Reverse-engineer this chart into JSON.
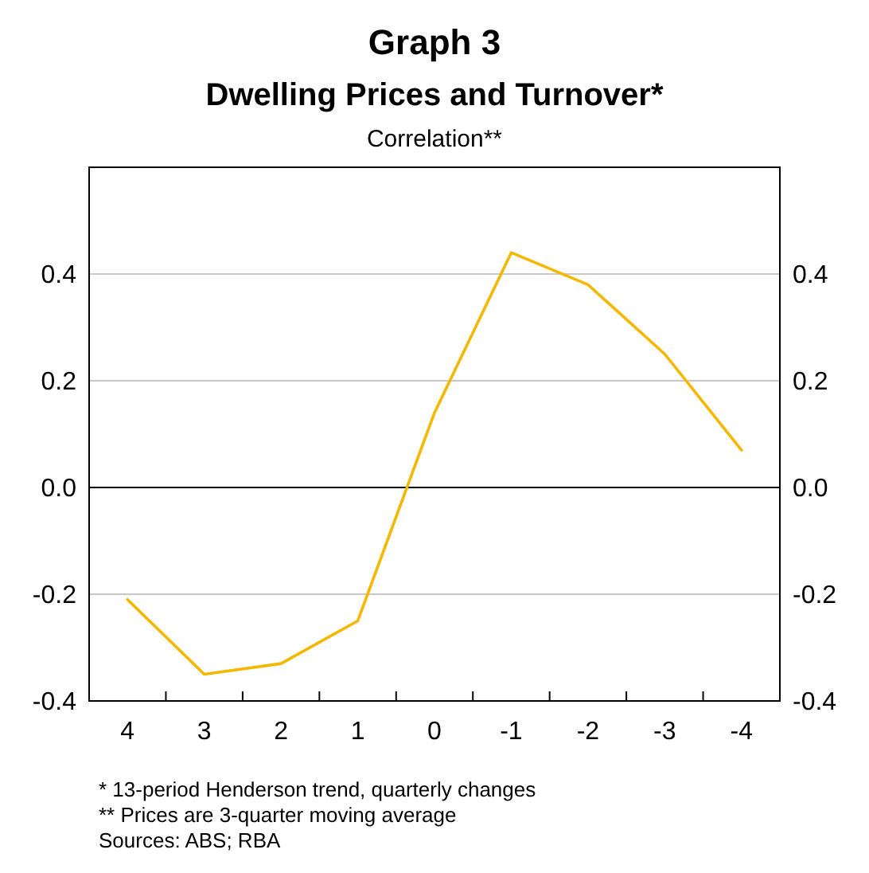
{
  "chart_data": {
    "type": "line",
    "title": "Graph 3",
    "subtitle": "Dwelling Prices and Turnover*",
    "ylabel": "Correlation**",
    "categories": [
      "4",
      "3",
      "2",
      "1",
      "0",
      "-1",
      "-2",
      "-3",
      "-4"
    ],
    "series": [
      {
        "color": "#f5b800",
        "values": [
          -0.21,
          -0.35,
          -0.33,
          -0.25,
          0.14,
          0.44,
          0.38,
          0.25,
          0.07
        ]
      }
    ],
    "ylim": [
      -0.4,
      0.6
    ],
    "yticks": [
      {
        "value": -0.4,
        "label": "-0.4"
      },
      {
        "value": -0.2,
        "label": "-0.2"
      },
      {
        "value": 0,
        "label": "0.0"
      },
      {
        "value": 0.2,
        "label": "0.2"
      },
      {
        "value": 0.4,
        "label": "0.4"
      }
    ],
    "y2lim": [
      -0.4,
      0.6
    ],
    "y2ticks": [
      {
        "value": -0.4,
        "label": "-0.4"
      },
      {
        "value": -0.2,
        "label": "-0.2"
      },
      {
        "value": 0,
        "label": "0.0"
      },
      {
        "value": 0.2,
        "label": "0.2"
      },
      {
        "value": 0.4,
        "label": "0.4"
      }
    ],
    "grid": "y",
    "ref_lines": [
      {
        "axis": "y",
        "value": 0,
        "color": "#000000"
      }
    ],
    "annotations": [
      "* 13-period Henderson trend, quarterly changes",
      "** Prices are 3-quarter moving average",
      "Sources: ABS; RBA"
    ]
  }
}
